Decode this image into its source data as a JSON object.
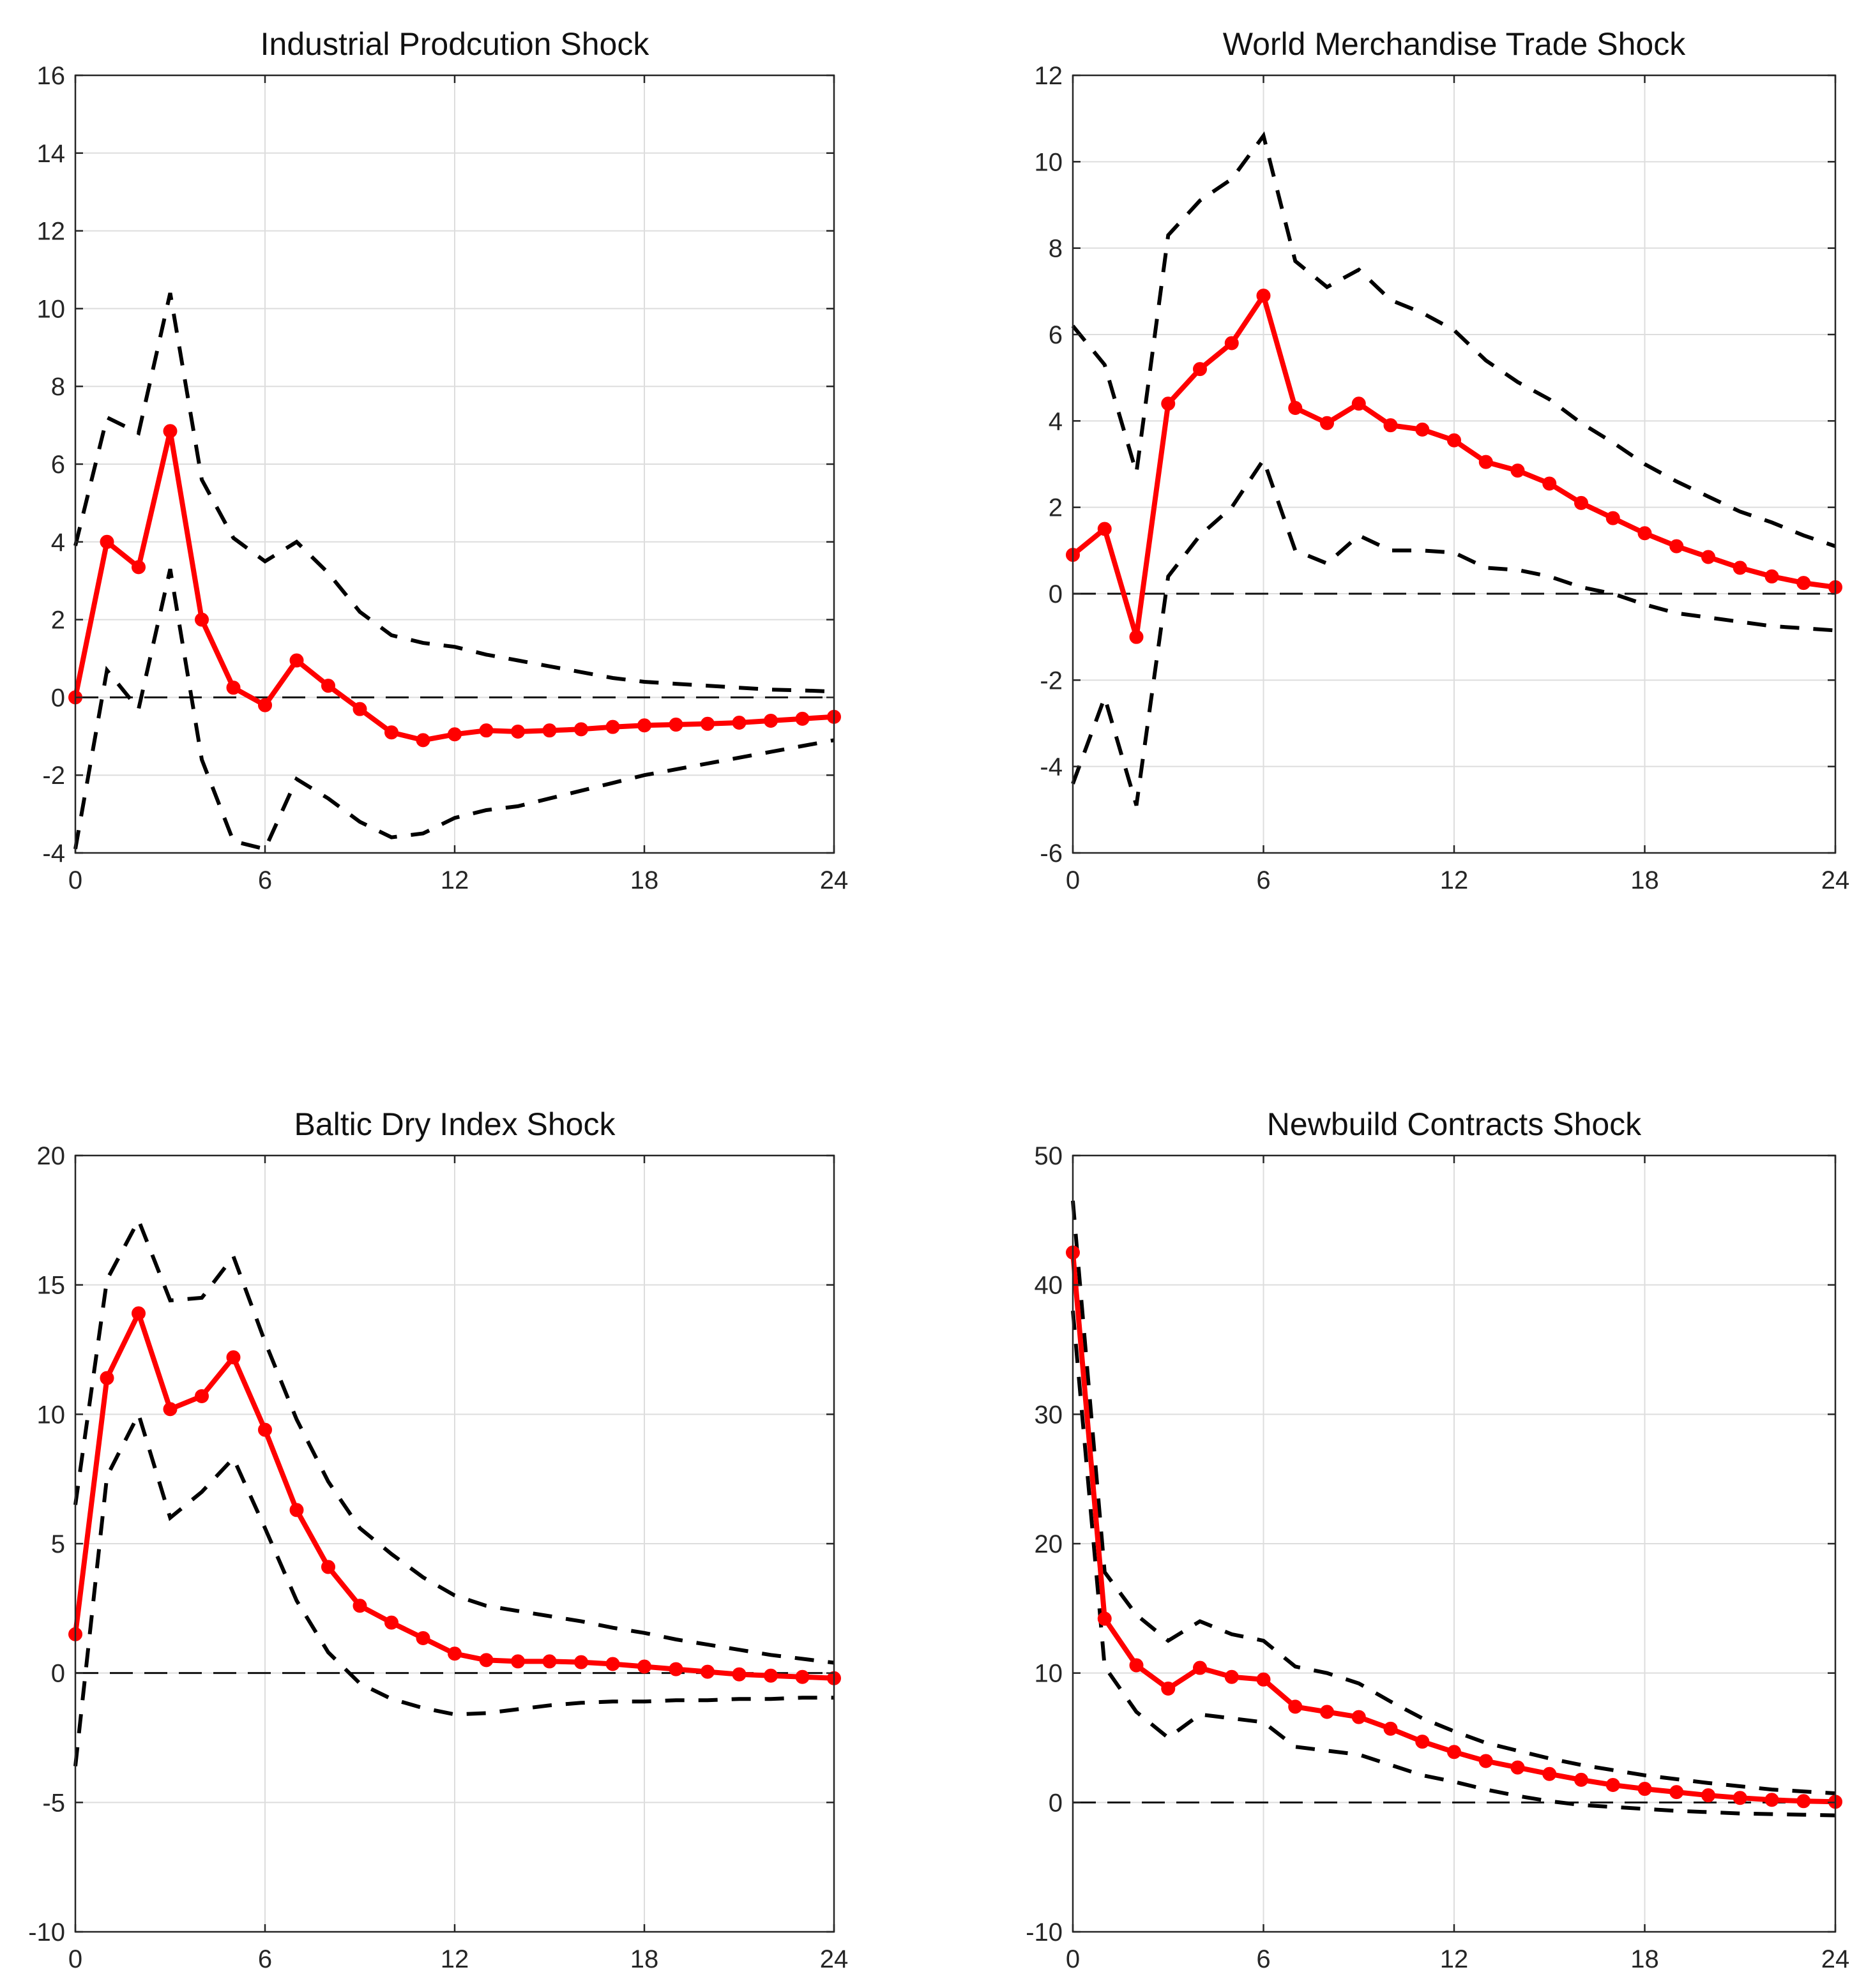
{
  "chart_data": [
    {
      "type": "line",
      "title": "Industrial Prodcution Shock",
      "xlabel": "",
      "ylabel": "",
      "xlim": [
        0,
        24
      ],
      "ylim": [
        -4,
        16
      ],
      "x_ticks": [
        0,
        6,
        12,
        18,
        24
      ],
      "y_ticks": [
        -4,
        -2,
        0,
        2,
        4,
        6,
        8,
        10,
        12,
        14,
        16
      ],
      "grid": true,
      "x": [
        0,
        1,
        2,
        3,
        4,
        5,
        6,
        7,
        8,
        9,
        10,
        11,
        12,
        13,
        14,
        15,
        16,
        17,
        18,
        19,
        20,
        21,
        22,
        23,
        24
      ],
      "series": [
        {
          "name": "Response",
          "style": "red-solid-markers",
          "values": [
            0,
            4,
            3.35,
            6.85,
            2,
            0.25,
            -0.2,
            0.95,
            0.3,
            -0.3,
            -0.9,
            -1.1,
            -0.95,
            -0.85,
            -0.88,
            -0.85,
            -0.82,
            -0.76,
            -0.72,
            -0.7,
            -0.68,
            -0.65,
            -0.6,
            -0.55,
            -0.5
          ]
        },
        {
          "name": "Upper band",
          "style": "black-dashed",
          "values": [
            3.9,
            7.2,
            6.8,
            10.4,
            5.6,
            4.1,
            3.5,
            4,
            3.2,
            2.2,
            1.6,
            1.4,
            1.3,
            1.1,
            0.95,
            0.8,
            0.65,
            0.5,
            0.4,
            0.35,
            0.3,
            0.25,
            0.2,
            0.18,
            0.15
          ]
        },
        {
          "name": "Lower band",
          "style": "black-dashed",
          "values": [
            -3.9,
            0.7,
            -0.3,
            3.3,
            -1.6,
            -3.7,
            -3.9,
            -2.1,
            -2.6,
            -3.2,
            -3.6,
            -3.5,
            -3.1,
            -2.9,
            -2.8,
            -2.6,
            -2.4,
            -2.2,
            -2,
            -1.85,
            -1.7,
            -1.55,
            -1.4,
            -1.25,
            -1.1
          ]
        }
      ],
      "zero_line": 0
    },
    {
      "type": "line",
      "title": "World Merchandise Trade Shock",
      "xlabel": "",
      "ylabel": "",
      "xlim": [
        0,
        24
      ],
      "ylim": [
        -6,
        12
      ],
      "x_ticks": [
        0,
        6,
        12,
        18,
        24
      ],
      "y_ticks": [
        -6,
        -4,
        -2,
        0,
        2,
        4,
        6,
        8,
        10,
        12
      ],
      "grid": true,
      "x": [
        0,
        1,
        2,
        3,
        4,
        5,
        6,
        7,
        8,
        9,
        10,
        11,
        12,
        13,
        14,
        15,
        16,
        17,
        18,
        19,
        20,
        21,
        22,
        23,
        24
      ],
      "series": [
        {
          "name": "Response",
          "style": "red-solid-markers",
          "values": [
            0.9,
            1.5,
            -1,
            4.4,
            5.2,
            5.8,
            6.9,
            4.3,
            3.95,
            4.4,
            3.9,
            3.8,
            3.55,
            3.05,
            2.85,
            2.55,
            2.1,
            1.75,
            1.4,
            1.1,
            0.85,
            0.6,
            0.4,
            0.25,
            0.15
          ]
        },
        {
          "name": "Upper band",
          "style": "black-dashed",
          "values": [
            6.2,
            5.3,
            2.8,
            8.3,
            9.1,
            9.6,
            10.6,
            7.7,
            7.1,
            7.5,
            6.8,
            6.5,
            6.1,
            5.4,
            4.9,
            4.5,
            3.95,
            3.5,
            3.0,
            2.6,
            2.25,
            1.9,
            1.65,
            1.35,
            1.1
          ]
        },
        {
          "name": "Lower band",
          "style": "black-dashed",
          "values": [
            -4.4,
            -2.4,
            -4.9,
            0.4,
            1.35,
            2.0,
            3.1,
            1.0,
            0.7,
            1.35,
            1.0,
            1.0,
            0.95,
            0.6,
            0.55,
            0.4,
            0.15,
            0.0,
            -0.25,
            -0.45,
            -0.55,
            -0.65,
            -0.75,
            -0.8,
            -0.85
          ]
        }
      ],
      "zero_line": 0
    },
    {
      "type": "line",
      "title": "Baltic Dry Index Shock",
      "xlabel": "",
      "ylabel": "",
      "xlim": [
        0,
        24
      ],
      "ylim": [
        -10,
        20
      ],
      "x_ticks": [
        0,
        6,
        12,
        18,
        24
      ],
      "y_ticks": [
        -10,
        -5,
        0,
        5,
        10,
        15,
        20
      ],
      "grid": true,
      "x": [
        0,
        1,
        2,
        3,
        4,
        5,
        6,
        7,
        8,
        9,
        10,
        11,
        12,
        13,
        14,
        15,
        16,
        17,
        18,
        19,
        20,
        21,
        22,
        23,
        24
      ],
      "series": [
        {
          "name": "Response",
          "style": "red-solid-markers",
          "values": [
            1.5,
            11.4,
            13.9,
            10.2,
            10.7,
            12.2,
            9.4,
            6.3,
            4.1,
            2.6,
            1.95,
            1.35,
            0.75,
            0.5,
            0.45,
            0.45,
            0.42,
            0.35,
            0.25,
            0.15,
            0.05,
            -0.05,
            -0.1,
            -0.15,
            -0.2
          ]
        },
        {
          "name": "Upper band",
          "style": "black-dashed",
          "values": [
            6.5,
            15.2,
            17.5,
            14.4,
            14.5,
            16.1,
            12.8,
            9.8,
            7.4,
            5.6,
            4.6,
            3.7,
            3.0,
            2.6,
            2.4,
            2.2,
            2.0,
            1.75,
            1.55,
            1.3,
            1.1,
            0.9,
            0.7,
            0.55,
            0.4
          ]
        },
        {
          "name": "Lower band",
          "style": "black-dashed",
          "values": [
            -3.6,
            7.6,
            10.0,
            6.0,
            7.0,
            8.3,
            5.6,
            2.8,
            0.8,
            -0.4,
            -1.0,
            -1.35,
            -1.6,
            -1.55,
            -1.4,
            -1.25,
            -1.15,
            -1.1,
            -1.1,
            -1.05,
            -1.05,
            -1.0,
            -1.0,
            -0.95,
            -0.95
          ]
        }
      ],
      "zero_line": 0
    },
    {
      "type": "line",
      "title": "Newbuild Contracts Shock",
      "xlabel": "",
      "ylabel": "",
      "xlim": [
        0,
        24
      ],
      "ylim": [
        -10,
        50
      ],
      "x_ticks": [
        0,
        6,
        12,
        18,
        24
      ],
      "y_ticks": [
        -10,
        0,
        10,
        20,
        30,
        40,
        50
      ],
      "grid": true,
      "x": [
        0,
        1,
        2,
        3,
        4,
        5,
        6,
        7,
        8,
        9,
        10,
        11,
        12,
        13,
        14,
        15,
        16,
        17,
        18,
        19,
        20,
        21,
        22,
        23,
        24
      ],
      "series": [
        {
          "name": "Response",
          "style": "red-solid-markers",
          "values": [
            42.5,
            14.2,
            10.6,
            8.8,
            10.4,
            9.7,
            9.5,
            7.4,
            7.0,
            6.6,
            5.7,
            4.7,
            3.9,
            3.2,
            2.7,
            2.2,
            1.75,
            1.35,
            1.05,
            0.8,
            0.55,
            0.35,
            0.2,
            0.1,
            0.05
          ]
        },
        {
          "name": "Upper band",
          "style": "black-dashed",
          "values": [
            46.5,
            17.8,
            14.5,
            12.5,
            14.0,
            13.0,
            12.5,
            10.5,
            10.0,
            9.2,
            7.8,
            6.5,
            5.5,
            4.6,
            4.0,
            3.4,
            2.9,
            2.5,
            2.1,
            1.8,
            1.5,
            1.25,
            1.0,
            0.85,
            0.7
          ]
        },
        {
          "name": "Lower band",
          "style": "black-dashed",
          "values": [
            38.0,
            10.5,
            7.0,
            5.0,
            6.8,
            6.5,
            6.2,
            4.3,
            4.0,
            3.7,
            2.9,
            2.1,
            1.6,
            1.0,
            0.5,
            0.1,
            -0.2,
            -0.35,
            -0.5,
            -0.65,
            -0.75,
            -0.85,
            -0.9,
            -0.95,
            -1.0
          ]
        }
      ],
      "zero_line": 0
    }
  ]
}
